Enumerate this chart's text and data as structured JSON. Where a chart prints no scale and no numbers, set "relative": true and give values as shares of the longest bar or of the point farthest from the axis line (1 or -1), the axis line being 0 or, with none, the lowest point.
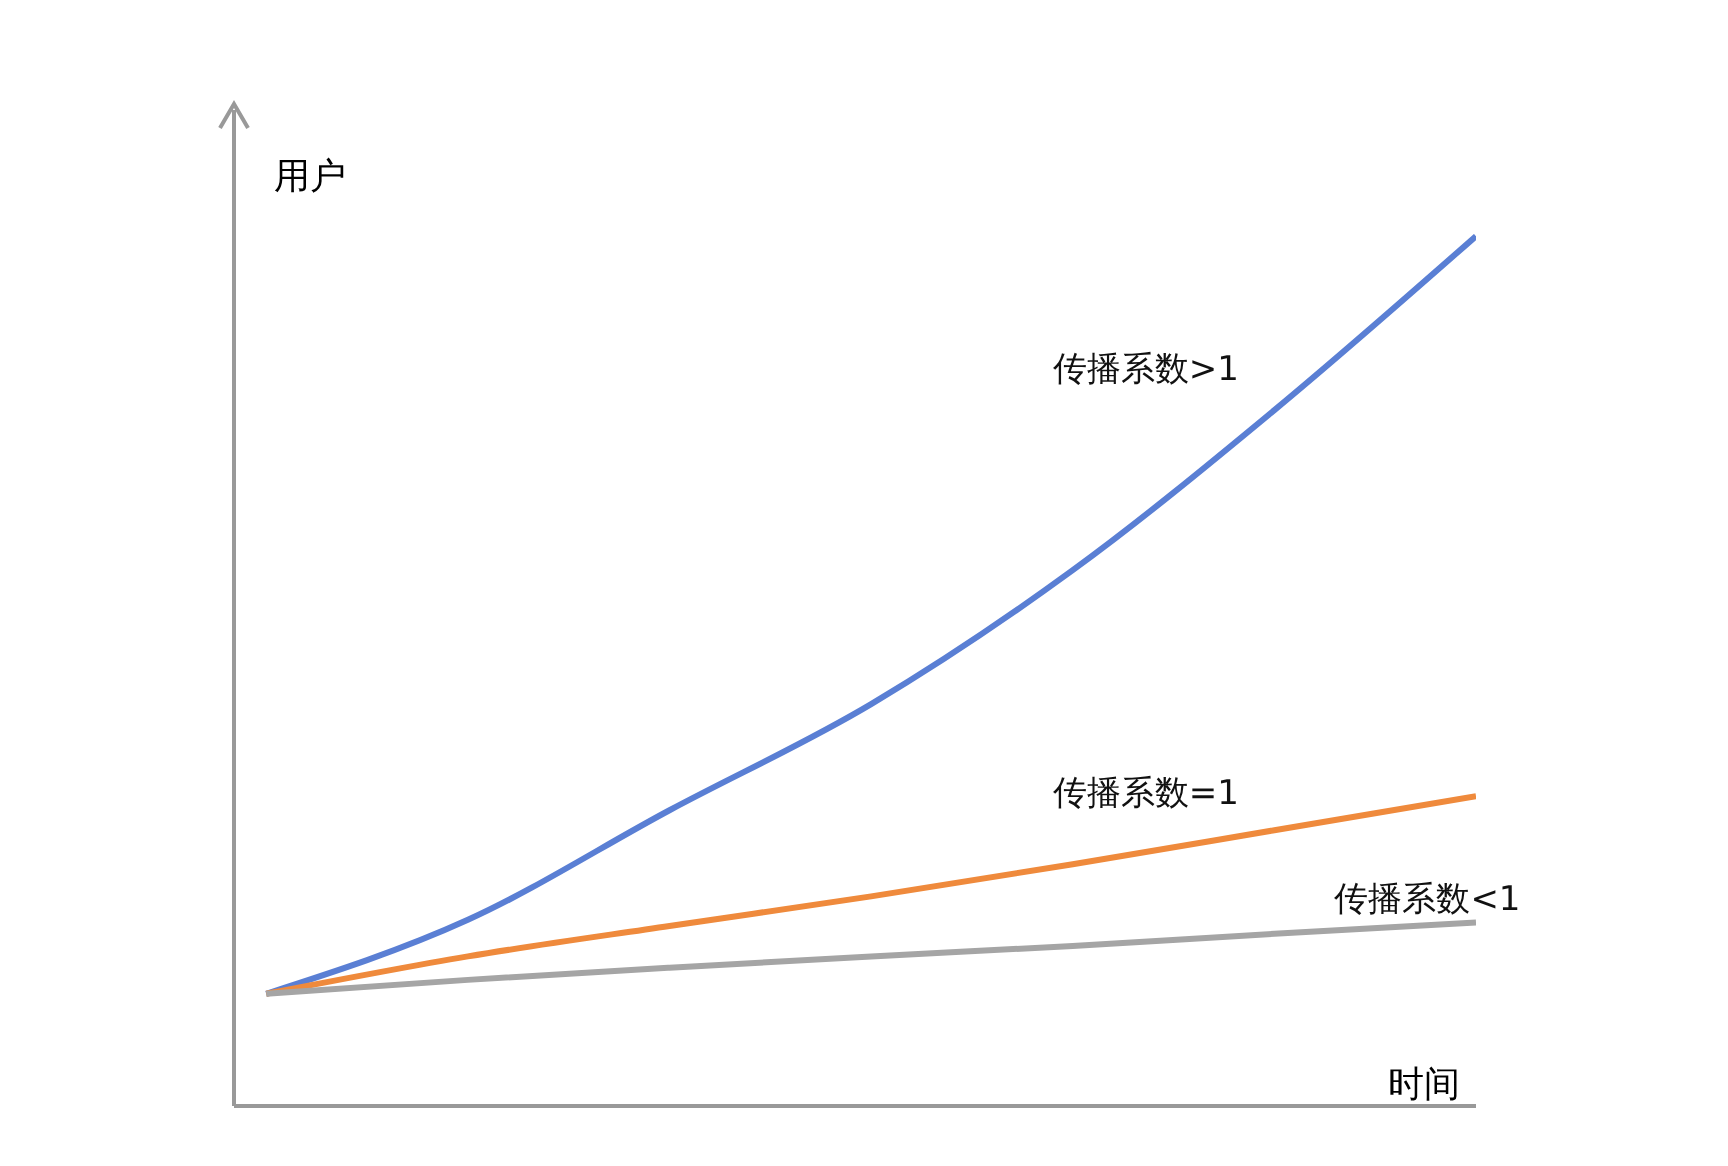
{
  "chart_data": {
    "type": "line",
    "relative": true,
    "xlabel": "时间",
    "ylabel": "用户",
    "categories": [
      null,
      null,
      null,
      null,
      null,
      null,
      null
    ],
    "series": [
      {
        "name": "传播系数>1",
        "color": "#5a7fd4",
        "values": [
          0.129,
          0.214,
          0.34,
          0.462,
          0.616,
          0.8,
          1
        ]
      },
      {
        "name": "传播系数=1",
        "color": "#ef8a3c",
        "values": [
          0.129,
          0.172,
          0.207,
          0.241,
          0.278,
          0.317,
          0.356
        ]
      },
      {
        "name": "传播系数<1",
        "color": "#a5a5a5",
        "values": [
          0.129,
          0.145,
          0.159,
          0.172,
          0.184,
          0.198,
          0.211
        ]
      }
    ]
  }
}
